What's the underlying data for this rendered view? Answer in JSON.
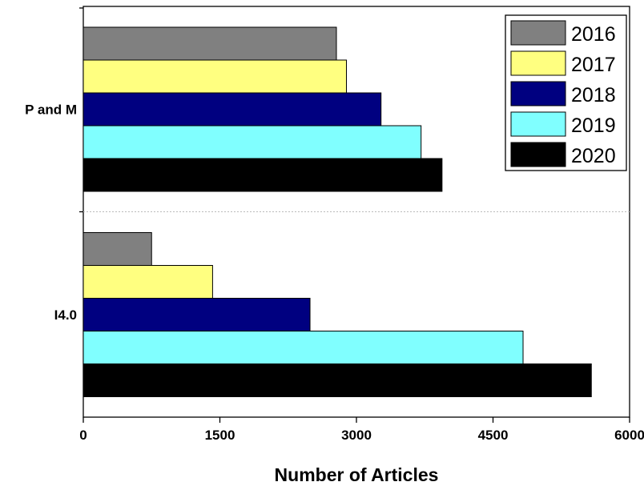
{
  "chart_data": {
    "type": "bar",
    "orientation": "horizontal",
    "categories": [
      "P and M",
      "I4.0"
    ],
    "series": [
      {
        "name": "2016",
        "color": "#808080",
        "values": [
          2780,
          750
        ]
      },
      {
        "name": "2017",
        "color": "#ffff80",
        "values": [
          2890,
          1420
        ]
      },
      {
        "name": "2018",
        "color": "#000080",
        "values": [
          3270,
          2490
        ]
      },
      {
        "name": "2019",
        "color": "#80ffff",
        "values": [
          3710,
          4830
        ]
      },
      {
        "name": "2020",
        "color": "#000000",
        "values": [
          3940,
          5580
        ]
      }
    ],
    "xlabel": "Number of Articles",
    "ylabel": "",
    "xlim": [
      0,
      6000
    ],
    "xticks": [
      "0",
      "1500",
      "3000",
      "4500",
      "6000"
    ],
    "legend_position": "top-right",
    "grid": false
  }
}
